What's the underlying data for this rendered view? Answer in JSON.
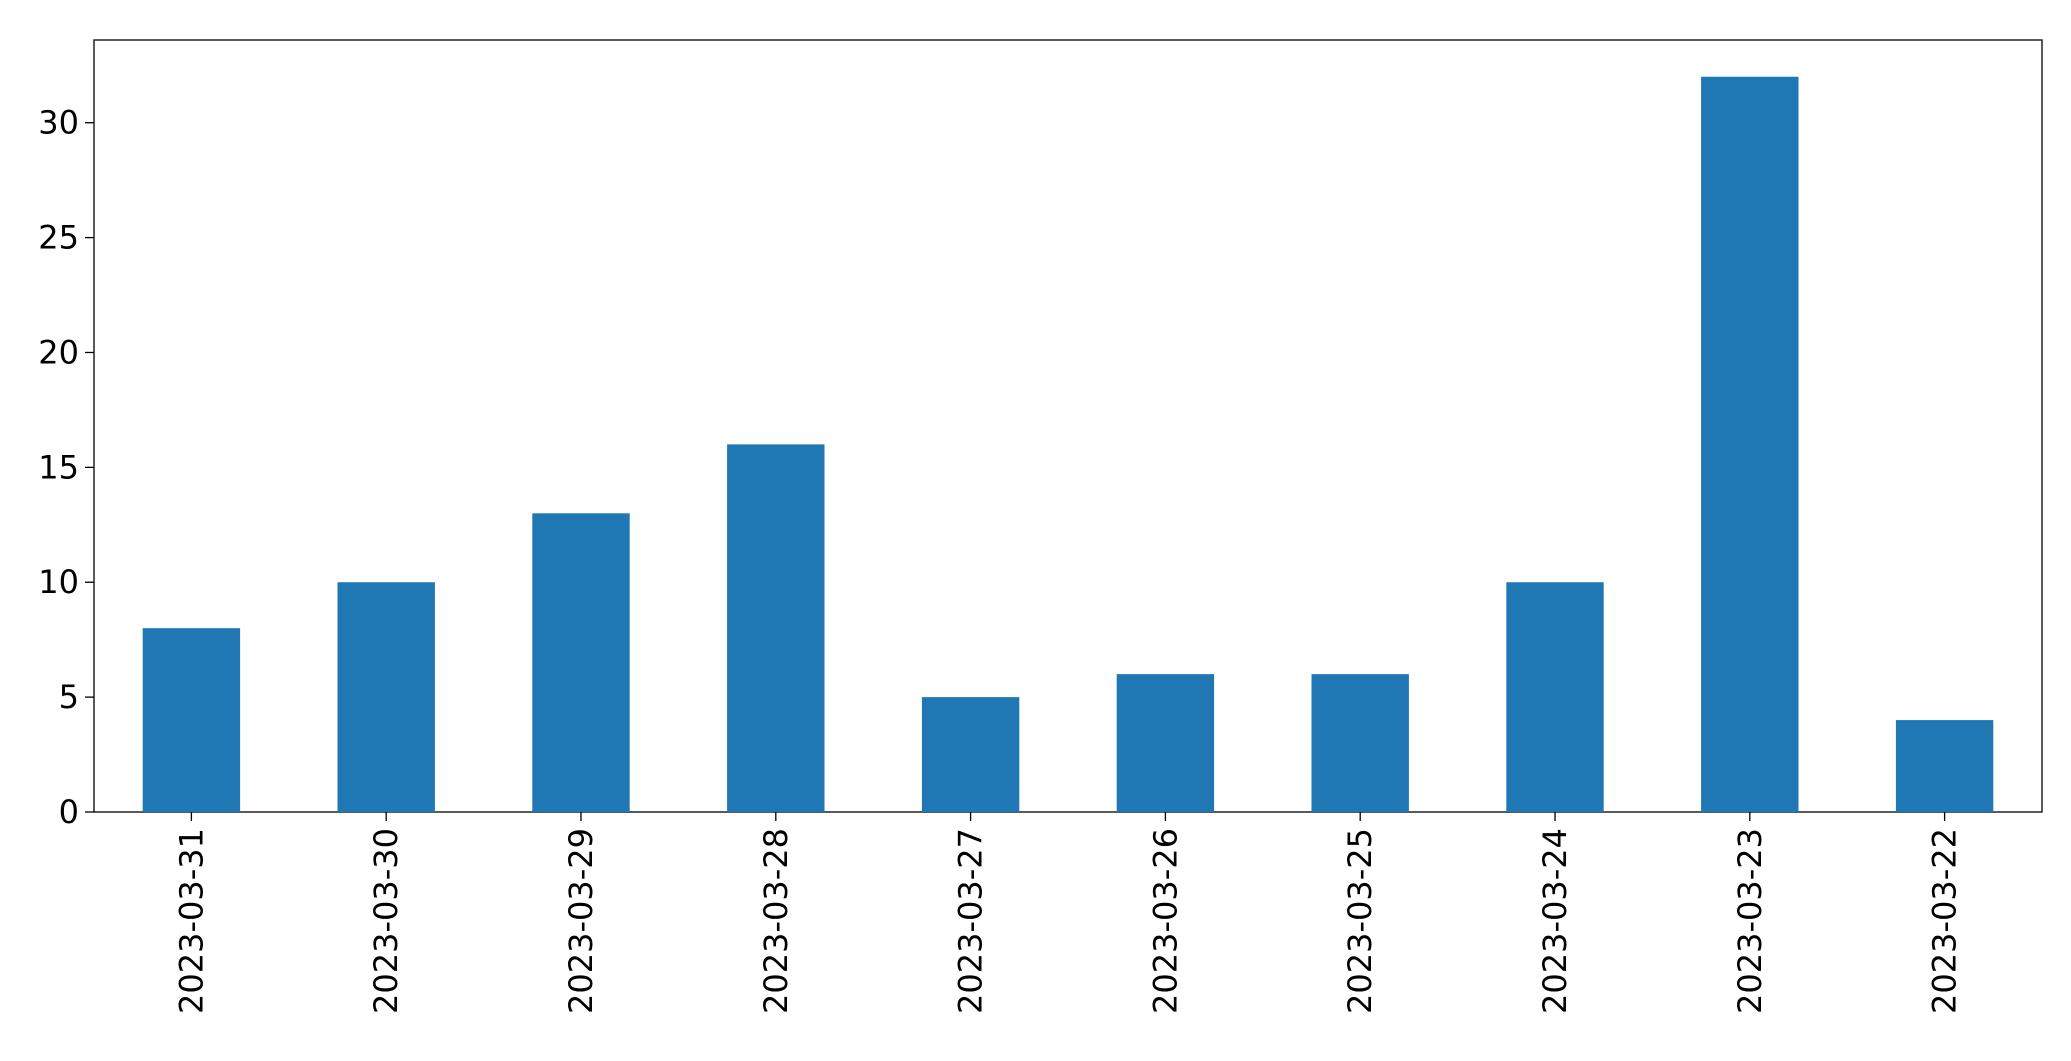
{
  "chart_data": {
    "type": "bar",
    "categories": [
      "2023-03-31",
      "2023-03-30",
      "2023-03-29",
      "2023-03-28",
      "2023-03-27",
      "2023-03-26",
      "2023-03-25",
      "2023-03-24",
      "2023-03-23",
      "2023-03-22"
    ],
    "values": [
      8,
      10,
      13,
      16,
      5,
      6,
      6,
      10,
      32,
      4
    ],
    "color": "#1f77b4",
    "ylim": [
      0,
      33.6
    ],
    "yticks": [
      0,
      5,
      10,
      15,
      20,
      25,
      30
    ],
    "grid": false
  }
}
